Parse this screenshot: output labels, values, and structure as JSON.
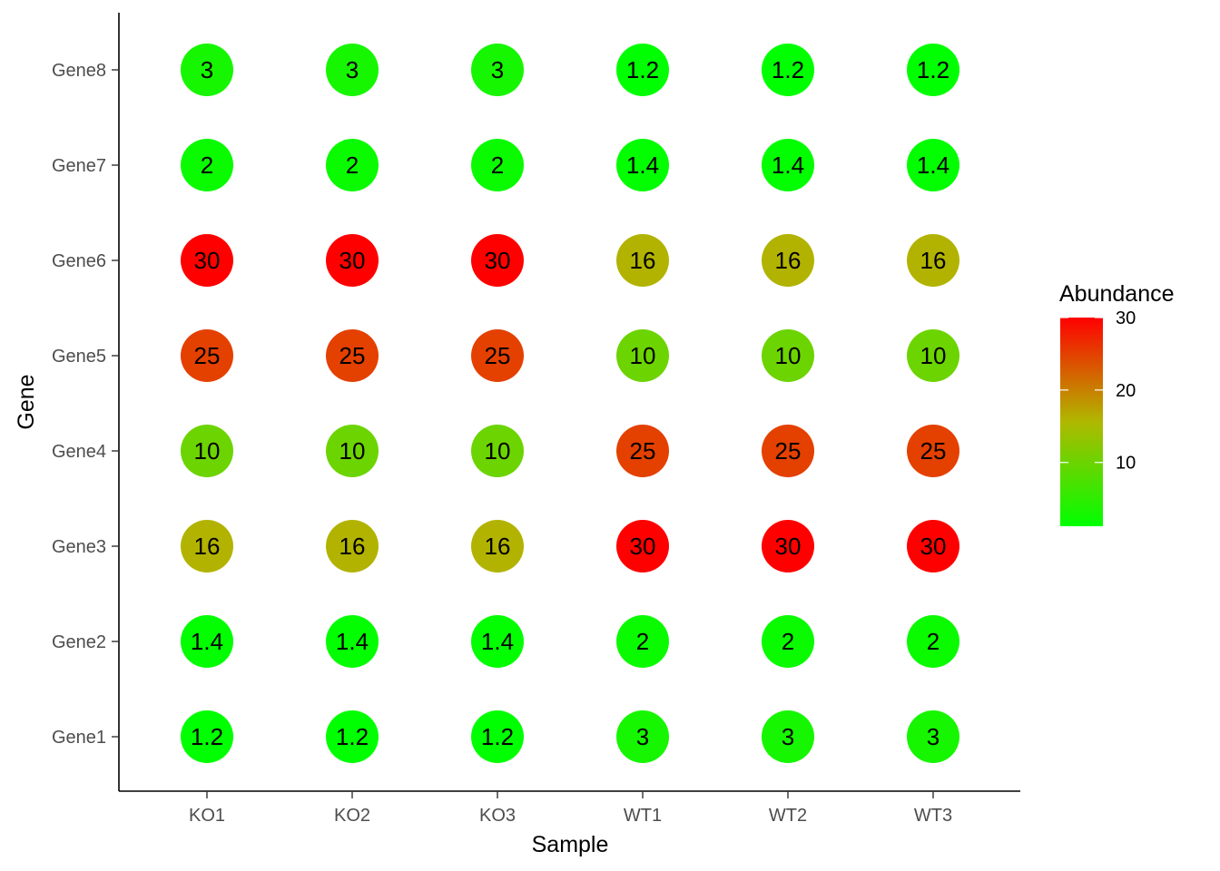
{
  "chart_data": {
    "type": "heatmap",
    "xlabel": "Sample",
    "ylabel": "Gene",
    "x": [
      "KO1",
      "KO2",
      "KO3",
      "WT1",
      "WT2",
      "WT3"
    ],
    "y": [
      "Gene1",
      "Gene2",
      "Gene3",
      "Gene4",
      "Gene5",
      "Gene6",
      "Gene7",
      "Gene8"
    ],
    "values": [
      [
        "1.2",
        "1.2",
        "1.2",
        "3",
        "3",
        "3"
      ],
      [
        "1.4",
        "1.4",
        "1.4",
        "2",
        "2",
        "2"
      ],
      [
        "16",
        "16",
        "16",
        "30",
        "30",
        "30"
      ],
      [
        "10",
        "10",
        "10",
        "25",
        "25",
        "25"
      ],
      [
        "25",
        "25",
        "25",
        "10",
        "10",
        "10"
      ],
      [
        "30",
        "30",
        "30",
        "16",
        "16",
        "16"
      ],
      [
        "2",
        "2",
        "2",
        "1.4",
        "1.4",
        "1.4"
      ],
      [
        "3",
        "3",
        "3",
        "1.2",
        "1.2",
        "1.2"
      ]
    ],
    "marker": "circle",
    "legend": {
      "title": "Abundance",
      "position": "right",
      "ticks": [
        "10",
        "20",
        "30"
      ],
      "range": [
        1.2,
        30
      ],
      "colors": {
        "low": "#00ff00",
        "high": "#ff0000"
      }
    },
    "grid": false
  }
}
